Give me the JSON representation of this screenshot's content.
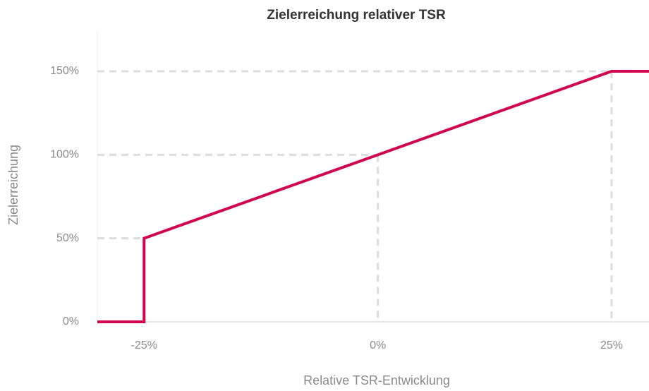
{
  "chart_data": {
    "type": "line",
    "title": "Zielerreichung relativer TSR",
    "xlabel": "Relative TSR-Entwicklung",
    "ylabel": "Zielerreichung",
    "x": [
      -30,
      -25,
      -25,
      0,
      25,
      29
    ],
    "series": [
      {
        "name": "Zielerreichung",
        "color": "#d1044f",
        "values": [
          0,
          0,
          50,
          100,
          150,
          150
        ]
      }
    ],
    "xlim": [
      -30,
      29
    ],
    "ylim": [
      0,
      150
    ],
    "xticks": [
      {
        "value": -25,
        "label": "-25%"
      },
      {
        "value": 0,
        "label": "0%"
      },
      {
        "value": 25,
        "label": "25%"
      }
    ],
    "yticks": [
      {
        "value": 0,
        "label": "0%"
      },
      {
        "value": 50,
        "label": "50%"
      },
      {
        "value": 100,
        "label": "100%"
      },
      {
        "value": 150,
        "label": "150%"
      }
    ]
  }
}
